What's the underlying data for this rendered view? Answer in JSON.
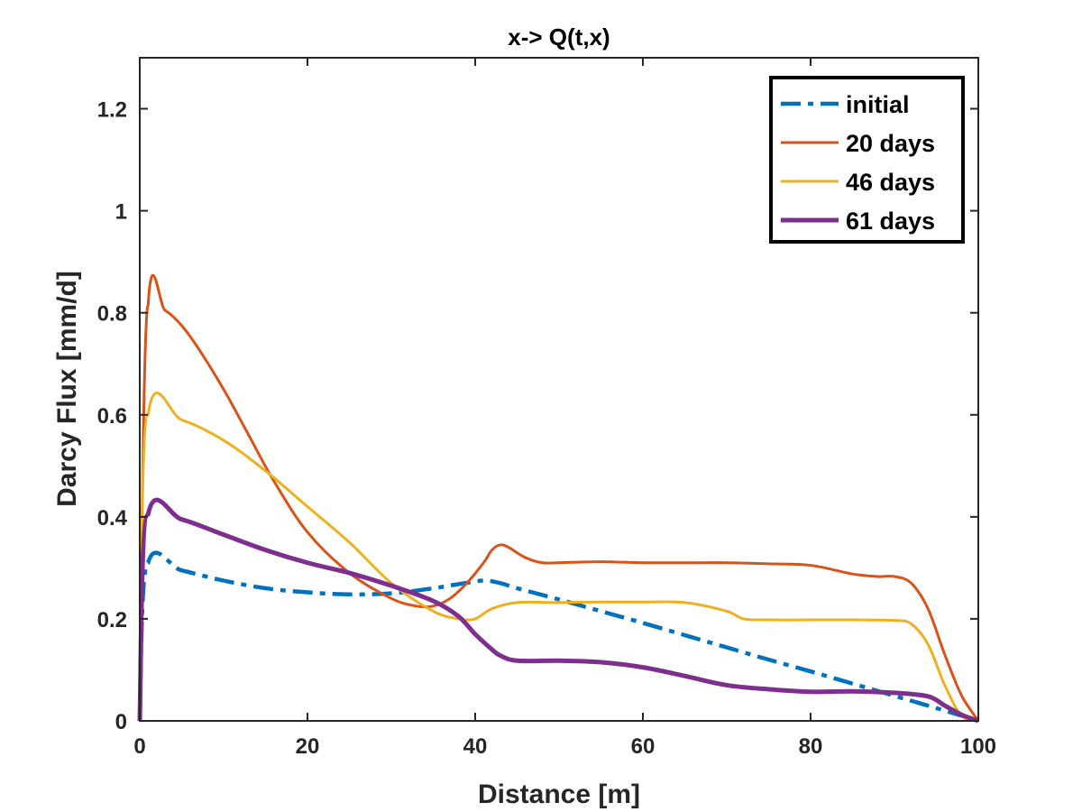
{
  "chart_data": {
    "type": "line",
    "title": "x-> Q(t,x)",
    "xlabel": "Distance [m]",
    "ylabel": "Darcy Flux [mm/d]",
    "xlim": [
      0,
      100
    ],
    "ylim": [
      0,
      1.3
    ],
    "xticks": [
      0,
      20,
      40,
      60,
      80,
      100
    ],
    "yticks": [
      0,
      0.2,
      0.4,
      0.6,
      0.8,
      1,
      1.2
    ],
    "xtick_labels": [
      "0",
      "20",
      "40",
      "60",
      "80",
      "100"
    ],
    "ytick_labels": [
      "0",
      "0.2",
      "0.4",
      "0.6",
      "0.8",
      "1",
      "1.2"
    ],
    "grid": false,
    "legend_position": "top-right",
    "series": [
      {
        "name": "initial",
        "color": "#0072BD",
        "style": "dashdot",
        "x": [
          0,
          1,
          5,
          10,
          15,
          20,
          25,
          30,
          35,
          38,
          41,
          43,
          45,
          50,
          55,
          60,
          65,
          70,
          75,
          80,
          85,
          90,
          95,
          100
        ],
        "y": [
          0,
          0.31,
          0.295,
          0.275,
          0.26,
          0.252,
          0.248,
          0.25,
          0.26,
          0.268,
          0.275,
          0.27,
          0.26,
          0.238,
          0.215,
          0.192,
          0.168,
          0.144,
          0.12,
          0.097,
          0.073,
          0.049,
          0.025,
          0
        ]
      },
      {
        "name": "20 days",
        "color": "#D95319",
        "style": "solid",
        "x": [
          0,
          1,
          3,
          5,
          7,
          10,
          13,
          16,
          20,
          25,
          30,
          33,
          35,
          37,
          39,
          41,
          42,
          43,
          44,
          46,
          48,
          50,
          55,
          60,
          65,
          70,
          75,
          80,
          85,
          88,
          90,
          92,
          94,
          96,
          98,
          100
        ],
        "y": [
          0,
          0.815,
          0.805,
          0.775,
          0.73,
          0.65,
          0.56,
          0.47,
          0.37,
          0.29,
          0.24,
          0.225,
          0.225,
          0.24,
          0.27,
          0.31,
          0.335,
          0.345,
          0.34,
          0.32,
          0.31,
          0.31,
          0.312,
          0.31,
          0.31,
          0.31,
          0.308,
          0.305,
          0.288,
          0.283,
          0.283,
          0.27,
          0.22,
          0.13,
          0.05,
          0
        ]
      },
      {
        "name": "46 days",
        "color": "#EDB120",
        "style": "solid",
        "x": [
          0,
          1,
          5,
          10,
          15,
          20,
          25,
          30,
          35,
          38,
          40,
          42,
          45,
          50,
          55,
          60,
          65,
          70,
          72,
          75,
          80,
          85,
          90,
          92,
          94,
          96,
          98,
          100
        ],
        "y": [
          0,
          0.6,
          0.59,
          0.55,
          0.49,
          0.42,
          0.35,
          0.27,
          0.215,
          0.2,
          0.2,
          0.22,
          0.232,
          0.232,
          0.233,
          0.233,
          0.232,
          0.215,
          0.2,
          0.198,
          0.198,
          0.198,
          0.197,
          0.19,
          0.15,
          0.07,
          0.01,
          0
        ]
      },
      {
        "name": "61 days",
        "color": "#7E2F8E",
        "style": "solid",
        "x": [
          0,
          1,
          5,
          10,
          15,
          20,
          25,
          30,
          35,
          38,
          40,
          42,
          43,
          45,
          50,
          55,
          60,
          65,
          70,
          75,
          80,
          85,
          90,
          94,
          96,
          98,
          100
        ],
        "y": [
          0,
          0.405,
          0.395,
          0.365,
          0.335,
          0.31,
          0.29,
          0.265,
          0.235,
          0.205,
          0.17,
          0.14,
          0.128,
          0.118,
          0.118,
          0.115,
          0.105,
          0.088,
          0.07,
          0.062,
          0.057,
          0.058,
          0.055,
          0.048,
          0.03,
          0.012,
          0
        ]
      }
    ]
  }
}
